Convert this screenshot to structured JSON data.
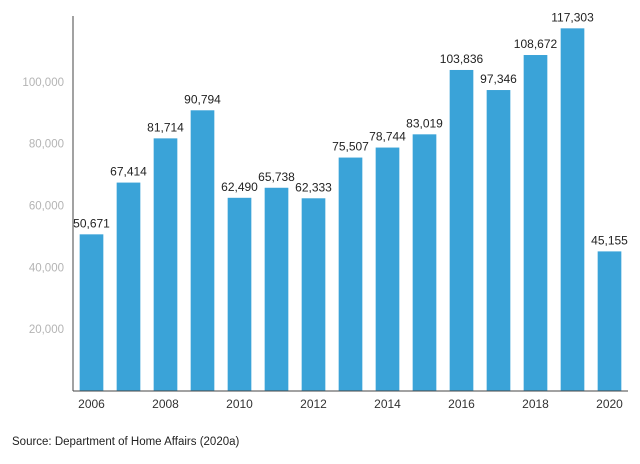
{
  "chart_data": {
    "type": "bar",
    "categories": [
      "2006",
      "2007",
      "2008",
      "2009",
      "2010",
      "2011",
      "2012",
      "2013",
      "2014",
      "2015",
      "2016",
      "2017",
      "2018",
      "2019",
      "2020"
    ],
    "values": [
      50671,
      67414,
      81714,
      90794,
      62490,
      65738,
      62333,
      75507,
      78744,
      83019,
      103836,
      97346,
      108672,
      117303,
      45155
    ],
    "value_labels": [
      "50,671",
      "67,414",
      "81,714",
      "90,794",
      "62,490",
      "65,738",
      "62,333",
      "75,507",
      "78,744",
      "83,019",
      "103,836",
      "97,346",
      "108,672",
      "117,303",
      "45,155"
    ],
    "x_tick_labels": [
      {
        "category": "2006",
        "label": "2006"
      },
      {
        "category": "2008",
        "label": "2008"
      },
      {
        "category": "2010",
        "label": "2010"
      },
      {
        "category": "2012",
        "label": "2012"
      },
      {
        "category": "2014",
        "label": "2014"
      },
      {
        "category": "2016",
        "label": "2016"
      },
      {
        "category": "2018",
        "label": "2018"
      },
      {
        "category": "2020",
        "label": "2020"
      }
    ],
    "y_ticks": [
      20000,
      40000,
      60000,
      80000,
      100000
    ],
    "y_tick_labels": [
      "20,000",
      "40,000",
      "60,000",
      "80,000",
      "100,000"
    ],
    "ylim": [
      0,
      120000
    ],
    "title": "",
    "xlabel": "",
    "ylabel": "",
    "grid": false,
    "bar_color": "#3aa3d8"
  },
  "source": "Source: Department of Home Affairs (2020a)"
}
